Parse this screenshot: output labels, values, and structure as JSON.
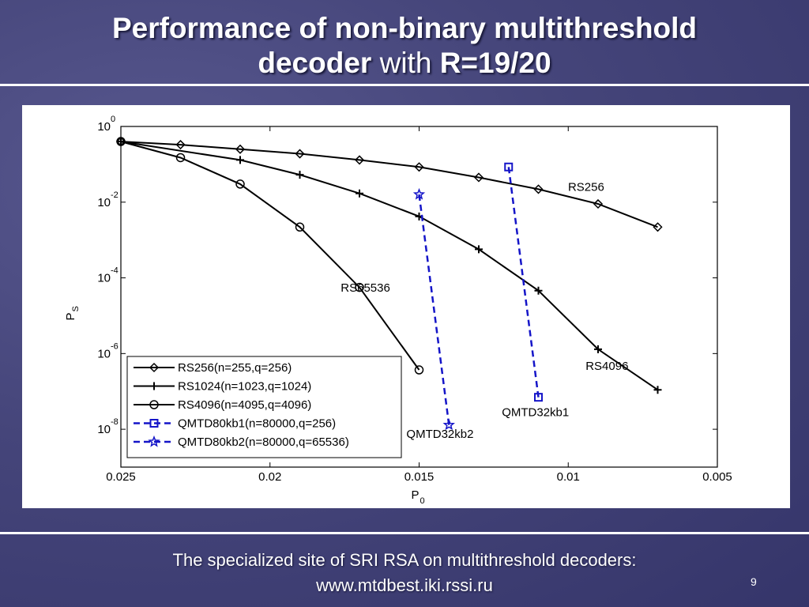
{
  "slide": {
    "title_line1": "Performance of non-binary multithreshold",
    "title_line2a": "decoder",
    "title_line2b": "with",
    "title_line2c": "R=19/20",
    "footer_line1": "The specialized site of SRI RSA on multithreshold decoders:",
    "footer_line2": "www.mtdbest.iki.rssi.ru",
    "page_number": "9"
  },
  "chart_data": {
    "type": "line",
    "title": "",
    "xlabel": "P",
    "xlabel_sub": "0",
    "ylabel": "P",
    "ylabel_sub": "S",
    "x_reversed": true,
    "xlim": [
      0.025,
      0.005
    ],
    "ylim_log10": [
      -9,
      0
    ],
    "y_scale": "log",
    "grid": false,
    "legend_position": "bottom-left",
    "x_ticks": [
      0.025,
      0.02,
      0.015,
      0.01,
      0.005
    ],
    "x_tick_labels": [
      "0.025",
      "0.02",
      "0.015",
      "0.01",
      "0.005"
    ],
    "y_tick_exponents": [
      0,
      -2,
      -4,
      -6,
      -8
    ],
    "y_tick_labels": [
      {
        "base": "10",
        "exp": "0"
      },
      {
        "base": "10",
        "exp": "-2"
      },
      {
        "base": "10",
        "exp": "-4"
      },
      {
        "base": "10",
        "exp": "-6"
      },
      {
        "base": "10",
        "exp": "-8"
      }
    ],
    "series": [
      {
        "name": "RS256(n=255,q=256)",
        "marker": "diamond",
        "color": "#000000",
        "dashed": false,
        "x": [
          0.025,
          0.023,
          0.021,
          0.019,
          0.017,
          0.015,
          0.013,
          0.011,
          0.009,
          0.007
        ],
        "y": [
          0.4,
          0.33,
          0.25,
          0.19,
          0.13,
          0.085,
          0.045,
          0.022,
          0.009,
          0.0022
        ]
      },
      {
        "name": "RS1024(n=1023,q=1024)",
        "marker": "plus",
        "color": "#000000",
        "dashed": false,
        "x": [
          0.025,
          0.021,
          0.019,
          0.017,
          0.015,
          0.013,
          0.011,
          0.009,
          0.007
        ],
        "y": [
          0.4,
          0.13,
          0.053,
          0.017,
          0.0042,
          0.00057,
          4.6e-05,
          1.3e-06,
          1.1e-07
        ]
      },
      {
        "name": "RS4096(n=4095,q=4096)",
        "marker": "circle",
        "color": "#000000",
        "dashed": false,
        "x": [
          0.025,
          0.023,
          0.021,
          0.019,
          0.017,
          0.015
        ],
        "y": [
          0.4,
          0.15,
          0.03,
          0.0022,
          5.6e-05,
          3.7e-07
        ]
      },
      {
        "name": "QMTD80kb1(n=80000,q=256)",
        "marker": "square",
        "color": "#1515c8",
        "dashed": true,
        "x": [
          0.012,
          0.011
        ],
        "y": [
          0.085,
          7e-08
        ]
      },
      {
        "name": "QMTD80kb2(n=80000,q=65536)",
        "marker": "star",
        "color": "#1515c8",
        "dashed": true,
        "x": [
          0.015,
          0.014
        ],
        "y": [
          0.016,
          1.3e-08
        ]
      }
    ],
    "annotations": [
      {
        "text": "RS256",
        "x": 0.0094,
        "y": 0.025
      },
      {
        "text": "RS65536",
        "x": 0.0168,
        "y": 5.5e-05
      },
      {
        "text": "RS4096",
        "x": 0.0087,
        "y": 4.7e-07
      },
      {
        "text": "QMTD32kb1",
        "x": 0.0111,
        "y": 2.8e-08
      },
      {
        "text": "QMTD32kb2",
        "x": 0.0143,
        "y": 7.5e-09
      }
    ]
  }
}
